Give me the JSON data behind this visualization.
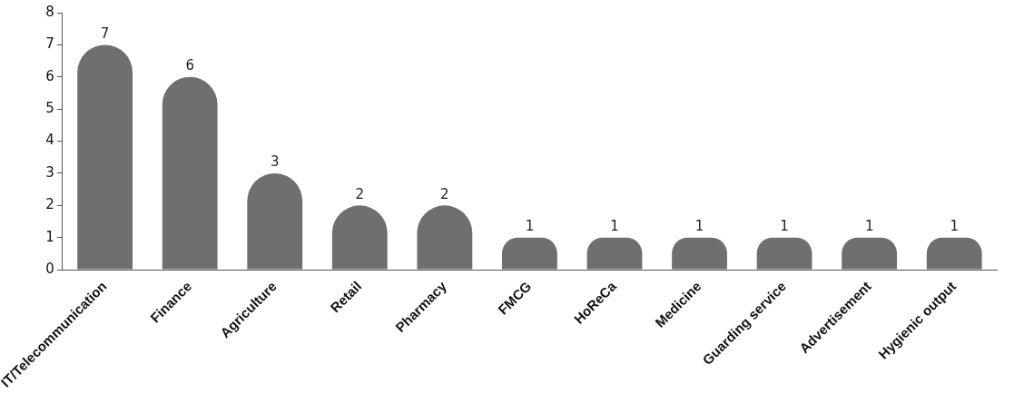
{
  "chart_data": {
    "type": "bar",
    "categories": [
      "IT/Telecommunication",
      "Finance",
      "Agriculture",
      "Retail",
      "Pharmacy",
      "FMCG",
      "HoReCa",
      "Medicine",
      "Guarding service",
      "Advertisement",
      "Hygienic output"
    ],
    "values": [
      7,
      6,
      3,
      2,
      2,
      1,
      1,
      1,
      1,
      1,
      1
    ],
    "color": "#6f6f6f",
    "ylim": [
      0,
      8
    ],
    "yticks": [
      0,
      1,
      2,
      3,
      4,
      5,
      6,
      7,
      8
    ],
    "grid": false,
    "legend": false,
    "data_labels": true
  }
}
